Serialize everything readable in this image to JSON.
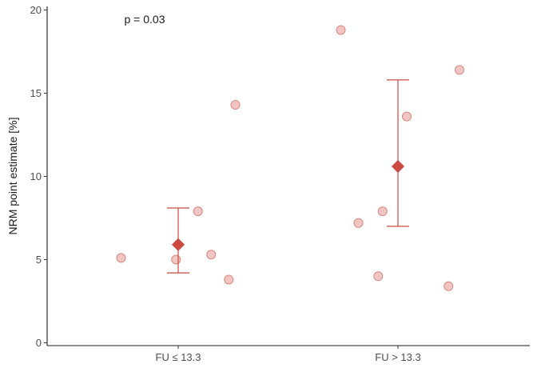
{
  "chart_data": {
    "type": "scatter",
    "title": "",
    "xlabel": "",
    "ylabel": "NRM point estimate [%]",
    "ylim": [
      0,
      20
    ],
    "yticks": [
      0,
      5,
      10,
      15,
      20
    ],
    "categories": [
      "FU ≤ 13.3",
      "FU > 13.3"
    ],
    "annotation": "p = 0.03",
    "grid": false,
    "legend": "none",
    "colors": {
      "point_fill": "#e8a09a",
      "point_stroke": "#d98880",
      "summary": "#cd4a42"
    },
    "series": [
      {
        "category": "FU ≤ 13.3",
        "points": [
          {
            "x": 0.74,
            "y": 5.1
          },
          {
            "x": 0.99,
            "y": 5.0
          },
          {
            "x": 1.09,
            "y": 7.9
          },
          {
            "x": 1.15,
            "y": 5.3
          },
          {
            "x": 1.23,
            "y": 3.8
          },
          {
            "x": 1.26,
            "y": 14.3
          }
        ],
        "mean": 5.9,
        "ci": [
          4.2,
          8.1
        ]
      },
      {
        "category": "FU > 13.3",
        "points": [
          {
            "x": 1.74,
            "y": 18.8
          },
          {
            "x": 1.82,
            "y": 7.2
          },
          {
            "x": 1.91,
            "y": 4.0
          },
          {
            "x": 1.93,
            "y": 7.9
          },
          {
            "x": 2.04,
            "y": 13.6
          },
          {
            "x": 2.23,
            "y": 3.4
          },
          {
            "x": 2.28,
            "y": 16.4
          }
        ],
        "mean": 10.6,
        "ci": [
          7.0,
          15.8
        ]
      }
    ]
  }
}
